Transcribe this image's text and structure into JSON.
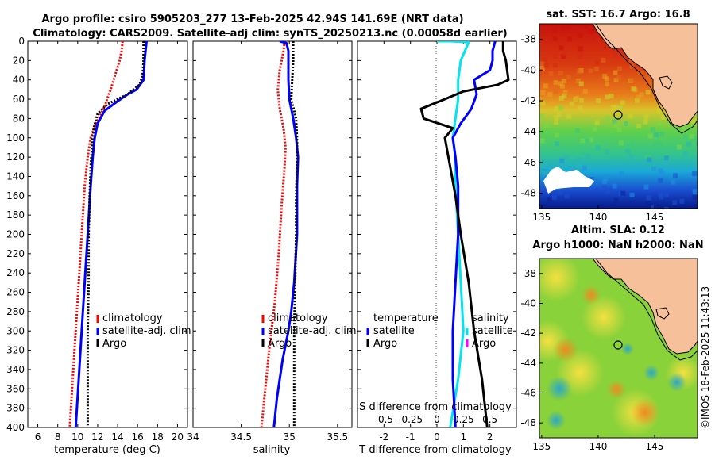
{
  "header": {
    "line1": "Argo profile: csiro 5905203_277 13-Feb-2025 42.94S 141.69E (NRT data)",
    "line2": "Climatology: CARS2009. Satellite-adj clim: synTS_20250213.nc (0.00058d earlier)"
  },
  "credit": "©IMOS 18-Feb-2025 11:43:13",
  "colors": {
    "climatology": "#ff0000",
    "satellite": "#0000ff",
    "argo": "#000000",
    "s_satellite": "#00e5ee",
    "s_climatology": "#ff00ff"
  },
  "chart_data": [
    {
      "id": "temperature",
      "type": "line",
      "xlabel": "temperature (deg C)",
      "ylabel": "",
      "xlim": [
        5,
        21
      ],
      "xticks": [
        6,
        8,
        10,
        12,
        14,
        16,
        18,
        20
      ],
      "ylim": [
        400,
        0
      ],
      "yticks": [
        0,
        20,
        40,
        60,
        80,
        100,
        120,
        140,
        160,
        180,
        200,
        220,
        240,
        260,
        280,
        300,
        320,
        340,
        360,
        380,
        400
      ],
      "legend": [
        "climatology",
        "satellite-adj. clim",
        "Argo"
      ],
      "series": [
        {
          "name": "climatology",
          "style": "dotted",
          "points": [
            [
              14.5,
              0
            ],
            [
              14.4,
              10
            ],
            [
              14.2,
              20
            ],
            [
              13.9,
              30
            ],
            [
              13.3,
              50
            ],
            [
              12.6,
              70
            ],
            [
              11.8,
              85
            ],
            [
              11.3,
              100
            ],
            [
              11.0,
              120
            ],
            [
              10.7,
              150
            ],
            [
              10.4,
              200
            ],
            [
              10.1,
              250
            ],
            [
              9.8,
              300
            ],
            [
              9.5,
              350
            ],
            [
              9.2,
              400
            ]
          ]
        },
        {
          "name": "satellite-adj. clim",
          "style": "solid",
          "points": [
            [
              16.9,
              0
            ],
            [
              16.8,
              10
            ],
            [
              16.7,
              20
            ],
            [
              16.6,
              40
            ],
            [
              15.9,
              50
            ],
            [
              15.0,
              55
            ],
            [
              14.0,
              62
            ],
            [
              12.7,
              72
            ],
            [
              12.0,
              85
            ],
            [
              11.7,
              100
            ],
            [
              11.5,
              120
            ],
            [
              11.3,
              150
            ],
            [
              11.0,
              200
            ],
            [
              10.7,
              250
            ],
            [
              10.4,
              300
            ],
            [
              10.1,
              350
            ],
            [
              9.8,
              400
            ]
          ]
        },
        {
          "name": "Argo",
          "style": "dotted",
          "points": [
            [
              16.6,
              0
            ],
            [
              16.6,
              20
            ],
            [
              16.5,
              35
            ],
            [
              16.2,
              45
            ],
            [
              15.0,
              55
            ],
            [
              13.0,
              65
            ],
            [
              12.0,
              75
            ],
            [
              11.6,
              90
            ],
            [
              11.5,
              100
            ],
            [
              11.3,
              130
            ],
            [
              11.2,
              160
            ],
            [
              11.1,
              200
            ],
            [
              11.1,
              250
            ],
            [
              11.0,
              300
            ],
            [
              11.0,
              350
            ],
            [
              11.0,
              400
            ]
          ]
        }
      ]
    },
    {
      "id": "salinity",
      "type": "line",
      "xlabel": "salinity",
      "ylabel": "",
      "xlim": [
        34,
        35.65
      ],
      "xticks": [
        34,
        34.5,
        35,
        35.5
      ],
      "ylim": [
        400,
        0
      ],
      "yticks": [
        0,
        20,
        40,
        60,
        80,
        100,
        120,
        140,
        160,
        180,
        200,
        220,
        240,
        260,
        280,
        300,
        320,
        340,
        360,
        380,
        400
      ],
      "legend": [
        "climatology",
        "satellite-adj. clim",
        "Argo"
      ],
      "series": [
        {
          "name": "climatology",
          "style": "dotted",
          "points": [
            [
              34.95,
              0
            ],
            [
              34.94,
              10
            ],
            [
              34.9,
              30
            ],
            [
              34.88,
              50
            ],
            [
              34.9,
              70
            ],
            [
              34.94,
              90
            ],
            [
              34.96,
              110
            ],
            [
              34.95,
              130
            ],
            [
              34.92,
              170
            ],
            [
              34.89,
              220
            ],
            [
              34.85,
              270
            ],
            [
              34.79,
              320
            ],
            [
              34.74,
              370
            ],
            [
              34.71,
              400
            ]
          ]
        },
        {
          "name": "satellite-adj. clim",
          "style": "solid",
          "points": [
            [
              34.9,
              0
            ],
            [
              34.97,
              2
            ],
            [
              34.99,
              10
            ],
            [
              34.99,
              40
            ],
            [
              35.0,
              60
            ],
            [
              35.04,
              80
            ],
            [
              35.07,
              100
            ],
            [
              35.09,
              120
            ],
            [
              35.08,
              150
            ],
            [
              35.08,
              180
            ],
            [
              35.08,
              200
            ],
            [
              35.05,
              250
            ],
            [
              35.02,
              280
            ],
            [
              34.99,
              300
            ],
            [
              34.93,
              330
            ],
            [
              34.87,
              370
            ],
            [
              34.84,
              400
            ]
          ]
        },
        {
          "name": "Argo",
          "style": "dotted",
          "points": [
            [
              35.04,
              0
            ],
            [
              35.04,
              20
            ],
            [
              35.03,
              40
            ],
            [
              35.02,
              60
            ],
            [
              35.07,
              80
            ],
            [
              35.08,
              100
            ],
            [
              35.08,
              130
            ],
            [
              35.07,
              160
            ],
            [
              35.07,
              200
            ],
            [
              35.06,
              250
            ],
            [
              35.05,
              300
            ],
            [
              35.05,
              350
            ],
            [
              35.05,
              400
            ]
          ]
        }
      ]
    },
    {
      "id": "difference",
      "type": "line",
      "xlabel": "T difference from climatology",
      "xlabel_top": "S difference from climatology",
      "xlim": [
        -3,
        3
      ],
      "xticks": [
        -2,
        -1,
        0,
        1,
        2
      ],
      "xticks_top": [
        "-0.5",
        "-0.25",
        "0",
        "0.25",
        "0.5"
      ],
      "ylim": [
        400,
        0
      ],
      "legend_titles": [
        "temperature",
        "salinity"
      ],
      "legend_left": [
        "satellite",
        "Argo"
      ],
      "legend_right": [
        "satellite",
        "Argo"
      ],
      "series": [
        {
          "name": "S satellite",
          "style": "solid",
          "points": [
            [
              0,
              0
            ],
            [
              0.5,
              0
            ],
            [
              1.2,
              1
            ],
            [
              0.9,
              20
            ],
            [
              0.8,
              40
            ],
            [
              0.8,
              60
            ],
            [
              0.7,
              80
            ],
            [
              0.6,
              100
            ],
            [
              0.7,
              120
            ],
            [
              0.7,
              150
            ],
            [
              0.8,
              200
            ],
            [
              0.9,
              250
            ],
            [
              1.0,
              300
            ],
            [
              0.8,
              350
            ],
            [
              0.5,
              400
            ]
          ]
        },
        {
          "name": "T satellite",
          "style": "solid",
          "points": [
            [
              2.2,
              0
            ],
            [
              2.1,
              10
            ],
            [
              2.1,
              20
            ],
            [
              2.0,
              30
            ],
            [
              1.4,
              40
            ],
            [
              1.5,
              55
            ],
            [
              1.3,
              70
            ],
            [
              0.9,
              85
            ],
            [
              0.6,
              100
            ],
            [
              0.7,
              120
            ],
            [
              0.8,
              150
            ],
            [
              0.8,
              200
            ],
            [
              0.7,
              250
            ],
            [
              0.6,
              300
            ],
            [
              0.6,
              350
            ],
            [
              0.7,
              400
            ]
          ]
        },
        {
          "name": "T Argo",
          "style": "solid",
          "points": [
            [
              2.5,
              0
            ],
            [
              2.5,
              10
            ],
            [
              2.6,
              20
            ],
            [
              2.7,
              40
            ],
            [
              2.3,
              45
            ],
            [
              1.0,
              52
            ],
            [
              0.3,
              60
            ],
            [
              -0.6,
              70
            ],
            [
              -0.5,
              80
            ],
            [
              0.6,
              90
            ],
            [
              0.3,
              100
            ],
            [
              0.5,
              130
            ],
            [
              0.7,
              160
            ],
            [
              0.9,
              200
            ],
            [
              1.2,
              250
            ],
            [
              1.4,
              300
            ],
            [
              1.7,
              350
            ],
            [
              1.9,
              400
            ]
          ]
        }
      ]
    },
    {
      "id": "sst_map",
      "type": "heatmap",
      "title": "sat. SST: 16.7 Argo: 16.8",
      "xticks": [
        135,
        140,
        145
      ],
      "yticks": [
        -38,
        -40,
        -42,
        -44,
        -46,
        -48
      ],
      "xlim": [
        134.8,
        148.8
      ],
      "ylim": [
        -49,
        -37
      ],
      "marker": {
        "lon": 141.69,
        "lat": -42.94
      }
    },
    {
      "id": "sla_map",
      "type": "heatmap",
      "title": "Altim. SLA: 0.12",
      "subtitle": "Argo h1000: NaN h2000: NaN",
      "xticks": [
        135,
        140,
        145
      ],
      "yticks": [
        -38,
        -40,
        -42,
        -44,
        -46,
        -48
      ],
      "xlim": [
        134.8,
        148.8
      ],
      "ylim": [
        -49,
        -37
      ],
      "marker": {
        "lon": 141.69,
        "lat": -42.94
      }
    }
  ]
}
